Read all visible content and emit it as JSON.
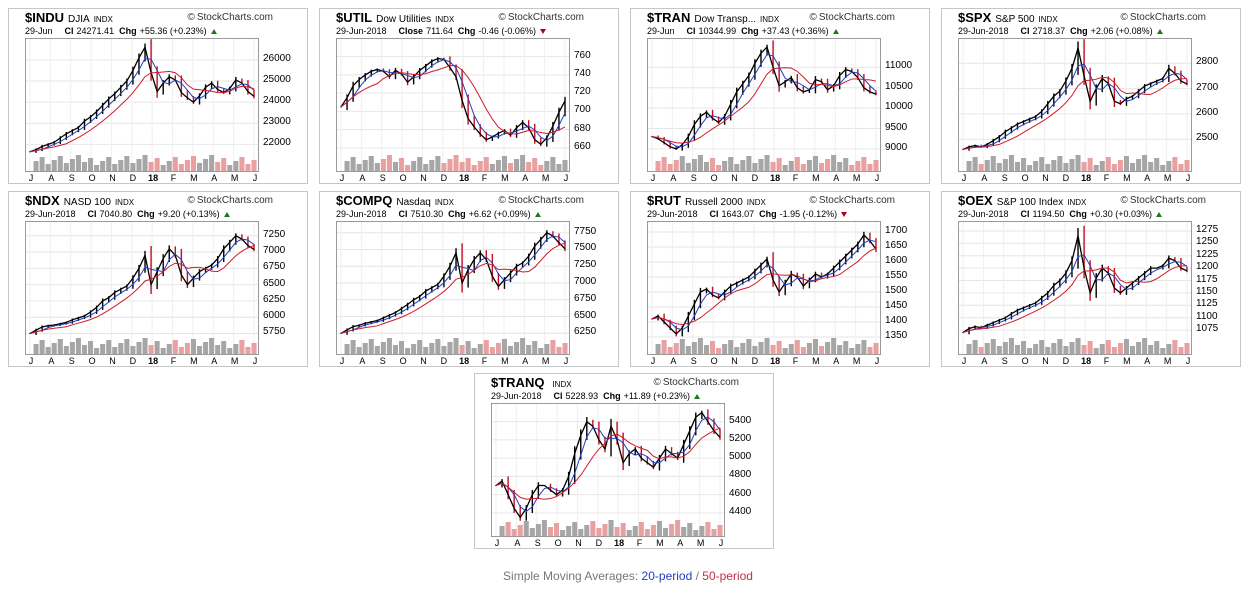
{
  "brand": "StockCharts.com",
  "footer": {
    "prefix": "Simple Moving Averages: ",
    "ma20": "20-period",
    "slash": " / ",
    "ma50": "50-period"
  },
  "colors": {
    "ma20": "#1f3fbf",
    "ma50": "#d11a2a",
    "up": "#1a7a1a",
    "down": "#b00020",
    "candle": "#000000",
    "vol_up": "#a6a6a6",
    "vol_down": "#e8a0a0"
  },
  "chart_data": [
    {
      "type": "line",
      "symbol": "$INDU",
      "name": "DJIA",
      "exchange": "INDX",
      "date": "29-Jun",
      "last_label": "Cl",
      "last": "24271.41",
      "chg_label": "Chg",
      "chg": "+55.36 (+0.23%)",
      "dir": "up",
      "x_ticks": [
        "J",
        "A",
        "S",
        "O",
        "N",
        "D",
        "18",
        "F",
        "M",
        "A",
        "M",
        "J"
      ],
      "y_ticks": [
        "26000",
        "25000",
        "24000",
        "23000",
        "22000"
      ],
      "ylim": [
        21400,
        26800
      ],
      "series": [
        21650,
        21750,
        21900,
        22000,
        22100,
        22300,
        22500,
        22650,
        22800,
        23100,
        23300,
        23550,
        23850,
        24150,
        24400,
        24700,
        25000,
        25500,
        26100,
        26600,
        25400,
        24500,
        24900,
        25200,
        25050,
        24450,
        24200,
        24000,
        24300,
        24700,
        24900,
        24600,
        24450,
        24650,
        25050,
        24900,
        24500,
        24271
      ]
    },
    {
      "type": "line",
      "symbol": "$UTIL",
      "name": "Dow Utilities",
      "exchange": "INDX",
      "date": "29-Jun-2018",
      "last_label": "Close",
      "last": "711.64",
      "chg_label": "Chg",
      "chg": "-0.46 (-0.06%)",
      "dir": "down",
      "x_ticks": [
        "J",
        "A",
        "S",
        "O",
        "N",
        "D",
        "18",
        "F",
        "M",
        "A",
        "M",
        "J"
      ],
      "y_ticks": [
        "760",
        "740",
        "720",
        "700",
        "680",
        "660"
      ],
      "ylim": [
        650,
        775
      ],
      "series": [
        705,
        715,
        728,
        735,
        740,
        744,
        746,
        744,
        738,
        745,
        741,
        732,
        738,
        745,
        750,
        755,
        758,
        757,
        748,
        738,
        712,
        692,
        683,
        675,
        669,
        672,
        676,
        679,
        674,
        682,
        688,
        682,
        669,
        664,
        671,
        684,
        699,
        711.6
      ]
    },
    {
      "type": "line",
      "symbol": "$TRAN",
      "name": "Dow Transp...",
      "exchange": "INDX",
      "date": "29-Jun",
      "last_label": "Cl",
      "last": "10344.99",
      "chg_label": "Chg",
      "chg": "+37.43 (+0.36%)",
      "dir": "up",
      "x_ticks": [
        "J",
        "A",
        "S",
        "O",
        "N",
        "D",
        "18",
        "F",
        "M",
        "A",
        "M",
        "J"
      ],
      "y_ticks": [
        "11000",
        "10500",
        "10000",
        "9500",
        "9000"
      ],
      "ylim": [
        8800,
        11600
      ],
      "series": [
        9300,
        9250,
        9150,
        9050,
        9000,
        9100,
        9300,
        9600,
        9800,
        9900,
        9750,
        9650,
        9800,
        10100,
        10400,
        10600,
        10800,
        11100,
        11350,
        11500,
        11000,
        10550,
        10650,
        10750,
        10500,
        10400,
        10450,
        10700,
        10650,
        10450,
        10550,
        10800,
        10950,
        10900,
        10750,
        10500,
        10400,
        10345
      ]
    },
    {
      "type": "line",
      "symbol": "$SPX",
      "name": "S&P 500",
      "exchange": "INDX",
      "date": "29-Jun-2018",
      "last_label": "Cl",
      "last": "2718.37",
      "chg_label": "Chg",
      "chg": "+2.06 (+0.08%)",
      "dir": "up",
      "x_ticks": [
        "J",
        "A",
        "S",
        "O",
        "N",
        "D",
        "18",
        "F",
        "M",
        "A",
        "M",
        "J"
      ],
      "y_ticks": [
        "2800",
        "2700",
        "2600",
        "2500"
      ],
      "ylim": [
        2430,
        2880
      ],
      "series": [
        2460,
        2470,
        2475,
        2470,
        2480,
        2495,
        2510,
        2530,
        2545,
        2560,
        2570,
        2580,
        2590,
        2610,
        2640,
        2670,
        2690,
        2730,
        2780,
        2860,
        2750,
        2650,
        2700,
        2740,
        2720,
        2650,
        2640,
        2660,
        2670,
        2690,
        2710,
        2720,
        2730,
        2740,
        2780,
        2760,
        2730,
        2718
      ]
    },
    {
      "type": "line",
      "symbol": "$NDX",
      "name": "NASD 100",
      "exchange": "INDX",
      "date": "29-Jun-2018",
      "last_label": "Cl",
      "last": "7040.80",
      "chg_label": "Chg",
      "chg": "+9.20 (+0.13%)",
      "dir": "up",
      "x_ticks": [
        "J",
        "A",
        "S",
        "O",
        "N",
        "D",
        "18",
        "F",
        "M",
        "A",
        "M",
        "J"
      ],
      "y_ticks": [
        "7250",
        "7000",
        "6750",
        "6500",
        "6250",
        "6000",
        "5750"
      ],
      "ylim": [
        5650,
        7400
      ],
      "series": [
        5750,
        5800,
        5850,
        5870,
        5880,
        5900,
        5920,
        5960,
        5990,
        6020,
        6080,
        6150,
        6250,
        6300,
        6380,
        6430,
        6480,
        6600,
        6750,
        6950,
        6500,
        6700,
        6900,
        7050,
        6950,
        6650,
        6500,
        6600,
        6700,
        6750,
        6800,
        6900,
        7050,
        7150,
        7250,
        7200,
        7100,
        7040
      ]
    },
    {
      "type": "line",
      "symbol": "$COMPQ",
      "name": "Nasdaq",
      "exchange": "INDX",
      "date": "29-Jun-2018",
      "last_label": "Cl",
      "last": "7510.30",
      "chg_label": "Chg",
      "chg": "+6.62 (+0.09%)",
      "dir": "up",
      "x_ticks": [
        "J",
        "A",
        "S",
        "O",
        "N",
        "D",
        "18",
        "F",
        "M",
        "A",
        "M",
        "J"
      ],
      "y_ticks": [
        "7750",
        "7500",
        "7250",
        "7000",
        "6750",
        "6500",
        "6250"
      ],
      "ylim": [
        6150,
        7850
      ],
      "series": [
        6250,
        6300,
        6350,
        6370,
        6400,
        6420,
        6440,
        6480,
        6520,
        6560,
        6620,
        6680,
        6750,
        6800,
        6880,
        6930,
        6980,
        7100,
        7250,
        7450,
        7000,
        7200,
        7350,
        7450,
        7350,
        7100,
        6950,
        7050,
        7150,
        7250,
        7300,
        7400,
        7550,
        7650,
        7750,
        7700,
        7600,
        7510
      ]
    },
    {
      "type": "line",
      "symbol": "$RUT",
      "name": "Russell 2000",
      "exchange": "INDX",
      "date": "29-Jun-2018",
      "last_label": "Cl",
      "last": "1643.07",
      "chg_label": "Chg",
      "chg": "-1.95 (-0.12%)",
      "dir": "down",
      "x_ticks": [
        "J",
        "A",
        "S",
        "O",
        "N",
        "D",
        "18",
        "F",
        "M",
        "A",
        "M",
        "J"
      ],
      "y_ticks": [
        "1700",
        "1650",
        "1600",
        "1550",
        "1500",
        "1450",
        "1400",
        "1350"
      ],
      "ylim": [
        1340,
        1720
      ],
      "series": [
        1410,
        1420,
        1400,
        1380,
        1360,
        1380,
        1420,
        1460,
        1500,
        1510,
        1490,
        1480,
        1500,
        1520,
        1530,
        1540,
        1550,
        1570,
        1590,
        1610,
        1540,
        1500,
        1530,
        1560,
        1550,
        1520,
        1540,
        1560,
        1550,
        1560,
        1580,
        1600,
        1620,
        1640,
        1660,
        1690,
        1670,
        1643
      ]
    },
    {
      "type": "line",
      "symbol": "$OEX",
      "name": "S&P 100 Index",
      "exchange": "INDX",
      "date": "29-Jun-2018",
      "last_label": "Cl",
      "last": "1194.50",
      "chg_label": "Chg",
      "chg": "+0.30 (+0.03%)",
      "dir": "up",
      "x_ticks": [
        "J",
        "A",
        "S",
        "O",
        "N",
        "D",
        "18",
        "F",
        "M",
        "A",
        "M",
        "J"
      ],
      "y_ticks": [
        "1275",
        "1250",
        "1225",
        "1200",
        "1175",
        "1150",
        "1125",
        "1100",
        "1075"
      ],
      "ylim": [
        1055,
        1285
      ],
      "series": [
        1070,
        1078,
        1082,
        1080,
        1085,
        1090,
        1095,
        1100,
        1108,
        1115,
        1120,
        1125,
        1130,
        1140,
        1150,
        1165,
        1175,
        1190,
        1215,
        1265,
        1200,
        1150,
        1180,
        1200,
        1190,
        1160,
        1150,
        1160,
        1170,
        1180,
        1190,
        1200,
        1200,
        1205,
        1220,
        1215,
        1200,
        1194.5
      ]
    },
    {
      "type": "line",
      "symbol": "$TRANQ",
      "name": "",
      "exchange": "INDX",
      "date": "29-Jun-2018",
      "last_label": "Cl",
      "last": "5228.93",
      "chg_label": "Chg",
      "chg": "+11.89 (+0.23%)",
      "dir": "up",
      "x_ticks": [
        "J",
        "A",
        "S",
        "O",
        "N",
        "D",
        "18",
        "F",
        "M",
        "A",
        "M",
        "J"
      ],
      "y_ticks": [
        "5400",
        "5200",
        "5000",
        "4800",
        "4600",
        "4400"
      ],
      "ylim": [
        4300,
        5550
      ],
      "series": [
        4700,
        4750,
        4600,
        4450,
        4350,
        4450,
        4600,
        4700,
        4700,
        4650,
        4600,
        4650,
        4800,
        5050,
        5250,
        5400,
        5350,
        5200,
        5100,
        5350,
        5200,
        4950,
        5050,
        5100,
        5000,
        4950,
        4900,
        5000,
        5100,
        5050,
        5000,
        5150,
        5300,
        5450,
        5500,
        5400,
        5300,
        5229
      ]
    }
  ]
}
